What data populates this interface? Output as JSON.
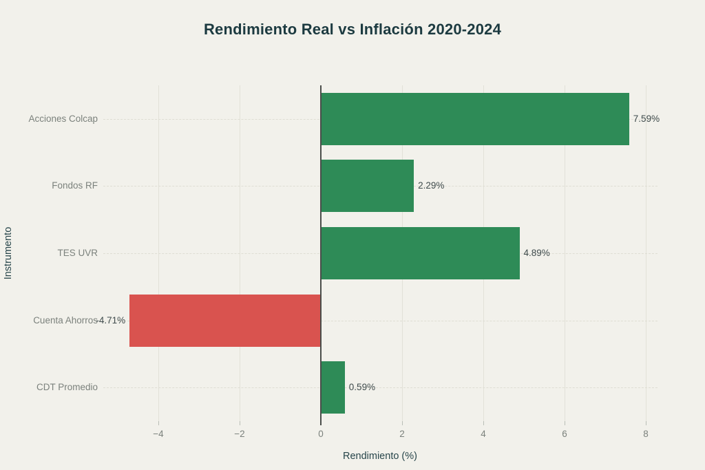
{
  "chart_data": {
    "type": "bar",
    "orientation": "horizontal",
    "title": "Rendimiento Real vs Inflación 2020-2024",
    "xlabel": "Rendimiento (%)",
    "ylabel": "Instrumento",
    "categories": [
      "Acciones Colcap",
      "Fondos RF",
      "TES UVR",
      "Cuenta Ahorros",
      "CDT Promedio"
    ],
    "values": [
      7.59,
      2.29,
      4.89,
      -4.71,
      0.59
    ],
    "value_labels": [
      "7.59%",
      "2.29%",
      "4.89%",
      "-4.71%",
      "0.59%"
    ],
    "bar_colors": [
      "#2e8b57",
      "#2e8b57",
      "#2e8b57",
      "#d9534f",
      "#2e8b57"
    ],
    "x_ticks": [
      -4,
      -2,
      0,
      2,
      4,
      6,
      8
    ],
    "x_tick_labels": [
      "−4",
      "−2",
      "0",
      "2",
      "4",
      "6",
      "8"
    ],
    "xlim": [
      -5.36,
      8.29
    ],
    "grid": true,
    "legend": "none",
    "colors": {
      "positive": "#2e8b57",
      "negative": "#d9534f",
      "background": "#f2f1eb",
      "title_text": "#1c3a40",
      "axis_title_text": "#27454a",
      "tick_text": "#7b817c",
      "value_text": "#3f4b4c",
      "gridline": "#e2e1d8",
      "zero_line": "#4a4d4a"
    }
  }
}
